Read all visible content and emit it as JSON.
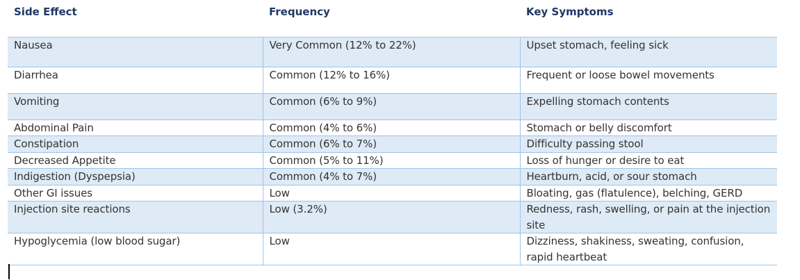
{
  "table": {
    "columns": [
      {
        "label": "Side Effect"
      },
      {
        "label": "Frequency"
      },
      {
        "label": "Key Symptoms"
      }
    ],
    "rows": [
      {
        "side_effect": "Nausea",
        "frequency": "Very Common (12% to 22%)",
        "symptoms": "Upset stomach, feeling sick"
      },
      {
        "side_effect": "Diarrhea",
        "frequency": "Common (12% to 16%)",
        "symptoms": "Frequent or loose bowel movements"
      },
      {
        "side_effect": "Vomiting",
        "frequency": "Common (6% to 9%)",
        "symptoms": "Expelling stomach contents"
      },
      {
        "side_effect": "Abdominal Pain",
        "frequency": "Common (4% to 6%)",
        "symptoms": "Stomach or belly discomfort"
      },
      {
        "side_effect": "Constipation",
        "frequency": "Common (6% to 7%)",
        "symptoms": "Difficulty passing stool"
      },
      {
        "side_effect": "Decreased Appetite",
        "frequency": "Common (5% to 11%)",
        "symptoms": "Loss of hunger or desire to eat"
      },
      {
        "side_effect": "Indigestion (Dyspepsia)",
        "frequency": "Common (4% to 7%)",
        "symptoms": "Heartburn, acid, or sour stomach"
      },
      {
        "side_effect": "Other GI issues",
        "frequency": "Low",
        "symptoms": "Bloating, gas (flatulence), belching, GERD"
      },
      {
        "side_effect": "Injection site reactions",
        "frequency": "Low (3.2%)",
        "symptoms": "Redness, rash, swelling, or pain at the injection site"
      },
      {
        "side_effect": "Hypoglycemia (low blood sugar)",
        "frequency": "Low",
        "symptoms": "Dizziness, shakiness, sweating, confusion, rapid heartbeat"
      }
    ]
  },
  "colors": {
    "header_text": "#1f3864",
    "body_text": "#333333",
    "row_alt_bg": "#deeaf6",
    "border": "#9dc3e6",
    "caret": "#000000"
  }
}
